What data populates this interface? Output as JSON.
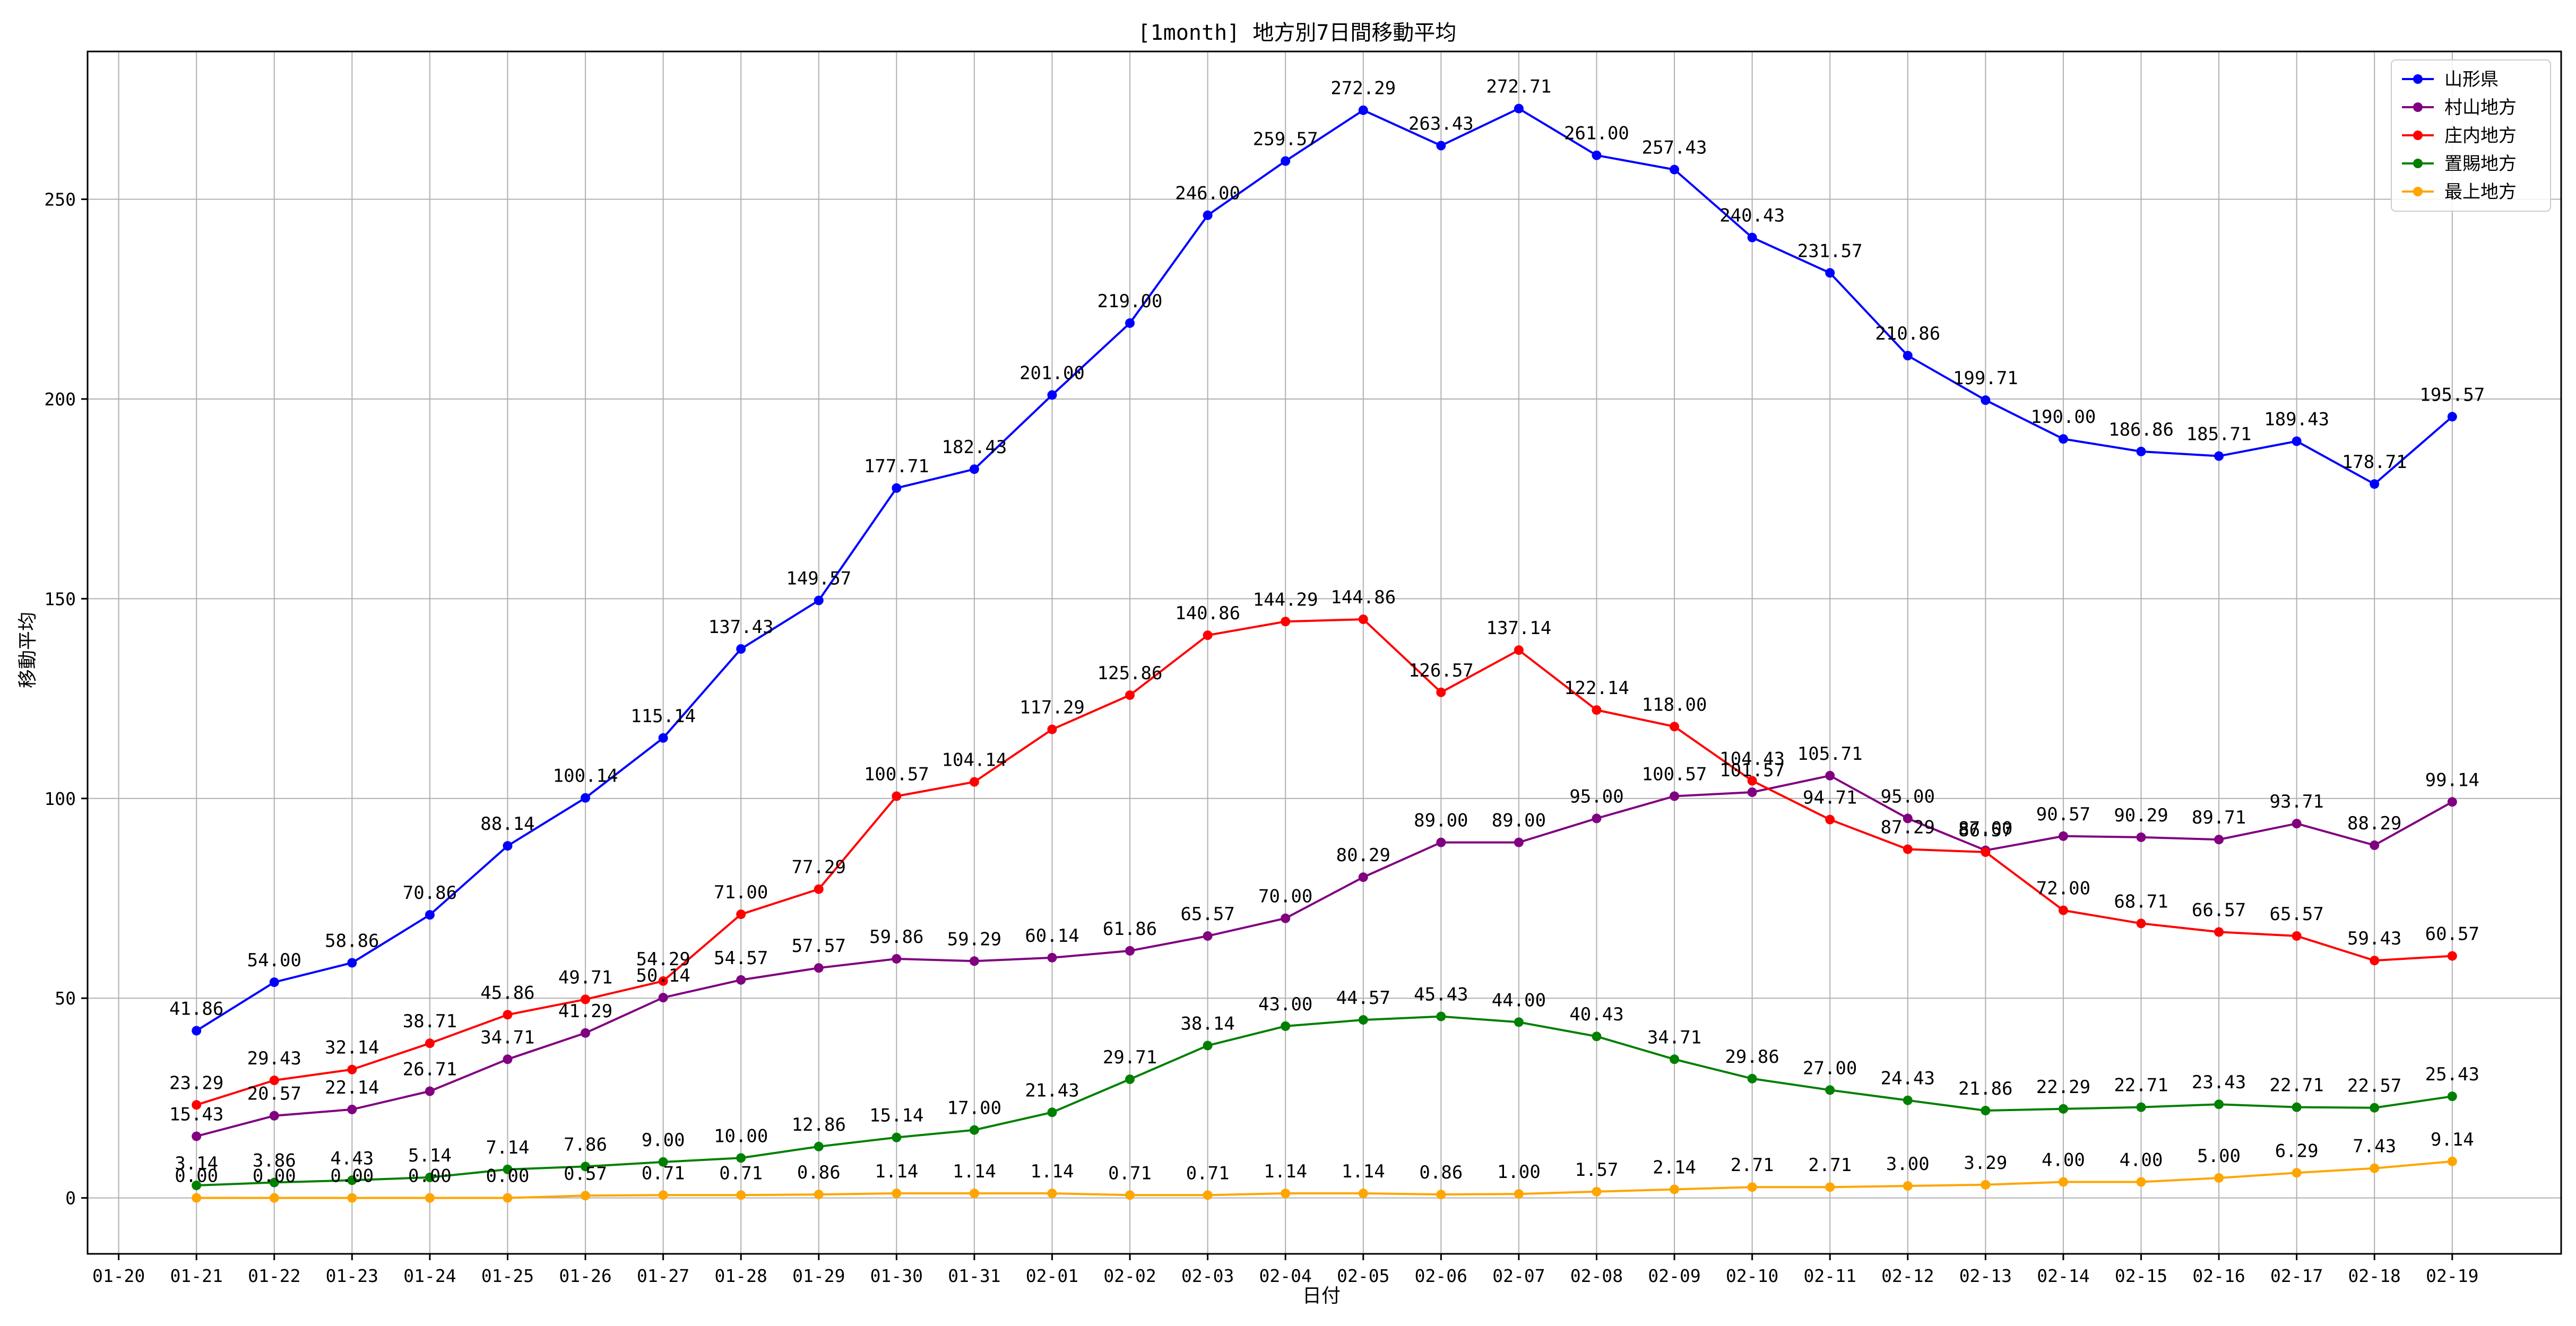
{
  "chart_data": {
    "type": "line",
    "title": "[1month] 地方別7日間移動平均",
    "xlabel": "日付",
    "ylabel": "移動平均",
    "x": [
      "01-20",
      "01-21",
      "01-22",
      "01-23",
      "01-24",
      "01-25",
      "01-26",
      "01-27",
      "01-28",
      "01-29",
      "01-30",
      "01-31",
      "02-01",
      "02-02",
      "02-03",
      "02-04",
      "02-05",
      "02-06",
      "02-07",
      "02-08",
      "02-09",
      "02-10",
      "02-11",
      "02-12",
      "02-13",
      "02-14",
      "02-15",
      "02-16",
      "02-17",
      "02-18",
      "02-19"
    ],
    "yticks": [
      0,
      50,
      100,
      150,
      200,
      250
    ],
    "ylim": [
      -14,
      287
    ],
    "xlim": [
      -0.4,
      31.4
    ],
    "grid": true,
    "legend_position": "top-right",
    "series": [
      {
        "name": "山形県",
        "color": "#0000ff",
        "values": [
          null,
          41.86,
          54.0,
          58.86,
          70.86,
          88.14,
          100.14,
          115.14,
          137.43,
          149.57,
          177.71,
          182.43,
          201.0,
          219.0,
          246.0,
          259.57,
          272.29,
          263.43,
          272.71,
          261.0,
          257.43,
          240.43,
          231.57,
          210.86,
          199.71,
          190.0,
          186.86,
          185.71,
          189.43,
          178.71,
          195.57
        ],
        "labels": [
          null,
          "41.86",
          "54.00",
          "58.86",
          "70.86",
          "88.14",
          "100.14",
          "115.14",
          "137.43",
          "149.57",
          "177.71",
          "182.43",
          "201.00",
          "219.00",
          "246.00",
          "259.57",
          "272.29",
          "263.43",
          "272.71",
          "261.00",
          "257.43",
          "240.43",
          "231.57",
          "210.86",
          "199.71",
          "190.00",
          "186.86",
          "185.71",
          "189.43",
          "178.71",
          "195.57"
        ]
      },
      {
        "name": "村山地方",
        "color": "#800080",
        "values": [
          null,
          15.43,
          20.57,
          22.14,
          26.71,
          34.71,
          41.29,
          50.14,
          54.57,
          57.57,
          59.86,
          59.29,
          60.14,
          61.86,
          65.57,
          70.0,
          80.29,
          89.0,
          89.0,
          95.0,
          100.57,
          101.57,
          105.71,
          95.0,
          87.0,
          90.57,
          90.29,
          89.71,
          93.71,
          88.29,
          99.14
        ],
        "labels": [
          null,
          "15.43",
          "20.57",
          "22.14",
          "26.71",
          "34.71",
          "41.29",
          "50.14",
          "54.57",
          "57.57",
          "59.86",
          "59.29",
          "60.14",
          "61.86",
          "65.57",
          "70.00",
          "80.29",
          "89.00",
          "89.00",
          "95.00",
          "100.57",
          "101.57",
          "105.71",
          "95.00",
          "87.00",
          "90.57",
          "90.29",
          "89.71",
          "93.71",
          "88.29",
          "99.14"
        ]
      },
      {
        "name": "庄内地方",
        "color": "#ff0000",
        "values": [
          null,
          23.29,
          29.43,
          32.14,
          38.71,
          45.86,
          49.71,
          54.29,
          71.0,
          77.29,
          100.57,
          104.14,
          117.29,
          125.86,
          140.86,
          144.29,
          144.86,
          126.57,
          137.14,
          122.14,
          118.0,
          104.43,
          94.71,
          87.29,
          86.57,
          72.0,
          68.71,
          66.57,
          65.57,
          59.43,
          60.57
        ],
        "labels": [
          null,
          "23.29",
          "29.43",
          "32.14",
          "38.71",
          "45.86",
          "49.71",
          "54.29",
          "71.00",
          "77.29",
          "100.57",
          "104.14",
          "117.29",
          "125.86",
          "140.86",
          "144.29",
          "144.86",
          "126.57",
          "137.14",
          "122.14",
          "118.00",
          "104.43",
          "94.71",
          "87.29",
          "86.57",
          "72.00",
          "68.71",
          "66.57",
          "65.57",
          "59.43",
          "60.57"
        ]
      },
      {
        "name": "置賜地方",
        "color": "#008000",
        "values": [
          null,
          3.14,
          3.86,
          4.43,
          5.14,
          7.14,
          7.86,
          9.0,
          10.0,
          12.86,
          15.14,
          17.0,
          21.43,
          29.71,
          38.14,
          43.0,
          44.57,
          45.43,
          44.0,
          40.43,
          34.71,
          29.86,
          27.0,
          24.43,
          21.86,
          22.29,
          22.71,
          23.43,
          22.71,
          22.57,
          25.43
        ],
        "labels": [
          null,
          "3.14",
          "3.86",
          "4.43",
          "5.14",
          "7.14",
          "7.86",
          "9.00",
          "10.00",
          "12.86",
          "15.14",
          "17.00",
          "21.43",
          "29.71",
          "38.14",
          "43.00",
          "44.57",
          "45.43",
          "44.00",
          "40.43",
          "34.71",
          "29.86",
          "27.00",
          "24.43",
          "21.86",
          "22.29",
          "22.71",
          "23.43",
          "22.71",
          "22.57",
          "25.43"
        ]
      },
      {
        "name": "最上地方",
        "color": "#ffa500",
        "values": [
          null,
          0.0,
          0.0,
          0.0,
          0.0,
          0.0,
          0.57,
          0.71,
          0.71,
          0.86,
          1.14,
          1.14,
          1.14,
          0.71,
          0.71,
          1.14,
          1.14,
          0.86,
          1.0,
          1.57,
          2.14,
          2.71,
          2.71,
          3.0,
          3.29,
          4.0,
          4.0,
          5.0,
          6.29,
          7.43,
          9.14
        ],
        "labels": [
          null,
          "0.00",
          "0.00",
          "0.00",
          "0.00",
          "0.00",
          "0.57",
          "0.71",
          "0.71",
          "0.86",
          "1.14",
          "1.14",
          "1.14",
          "0.71",
          "0.71",
          "1.14",
          "1.14",
          "0.86",
          "1.00",
          "1.57",
          "2.14",
          "2.71",
          "2.71",
          "3.00",
          "3.29",
          "4.00",
          "4.00",
          "5.00",
          "6.29",
          "7.43",
          "9.14"
        ]
      }
    ]
  }
}
